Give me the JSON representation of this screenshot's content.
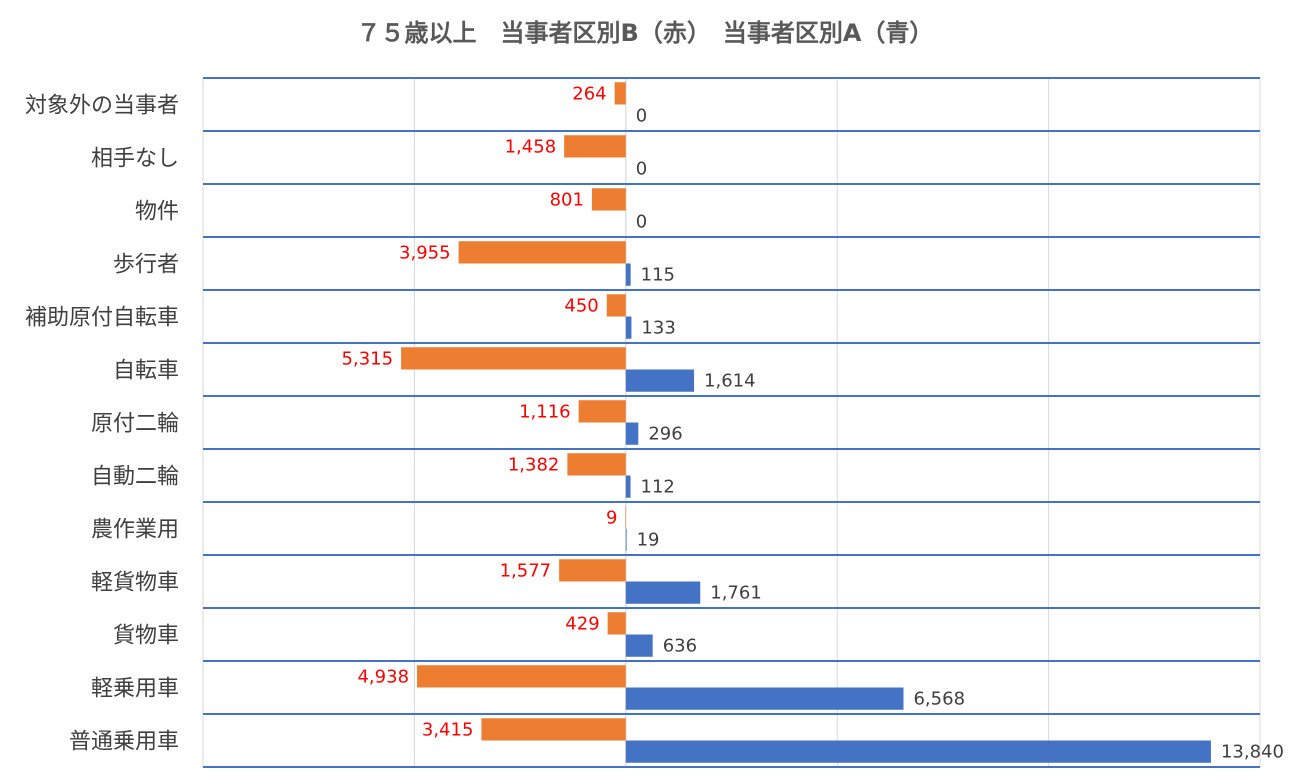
{
  "chart_data": {
    "type": "bar",
    "orientation": "horizontal",
    "title": "７５歳以上　当事者区別B（赤）　当事者区別A（青）",
    "categories": [
      "対象外の当事者",
      "相手なし",
      "物件",
      "歩行者",
      "補助原付自転車",
      "自転車",
      "原付二輪",
      "自動二輪",
      "農作業用",
      "軽貨物車",
      "貨物車",
      "軽乗用車",
      "普通乗用車"
    ],
    "series": [
      {
        "color": "#ed7d31",
        "direction": "left",
        "values": [
          264,
          1458,
          801,
          3955,
          450,
          5315,
          1116,
          1382,
          9,
          1577,
          429,
          4938,
          3415
        ],
        "labels": [
          "264",
          "1,458",
          "801",
          "3,955",
          "450",
          "5,315",
          "1,116",
          "1,382",
          "9",
          "1,577",
          "429",
          "4,938",
          "3,415"
        ]
      },
      {
        "color": "#4472c4",
        "direction": "right",
        "values": [
          0,
          0,
          0,
          115,
          133,
          1614,
          296,
          112,
          19,
          1761,
          636,
          6568,
          13840
        ],
        "labels": [
          "0",
          "0",
          "0",
          "115",
          "133",
          "1,614",
          "296",
          "112",
          "19",
          "1,761",
          "636",
          "6,568",
          "13,840"
        ]
      }
    ],
    "xlim": [
      -10000,
      15000
    ],
    "grid": true,
    "legend": "none"
  },
  "colors": {
    "gridline": "#d9d9d9",
    "separator": "#4472c4",
    "series_b_label": "#ff0000",
    "series_a_label": "#404040"
  }
}
